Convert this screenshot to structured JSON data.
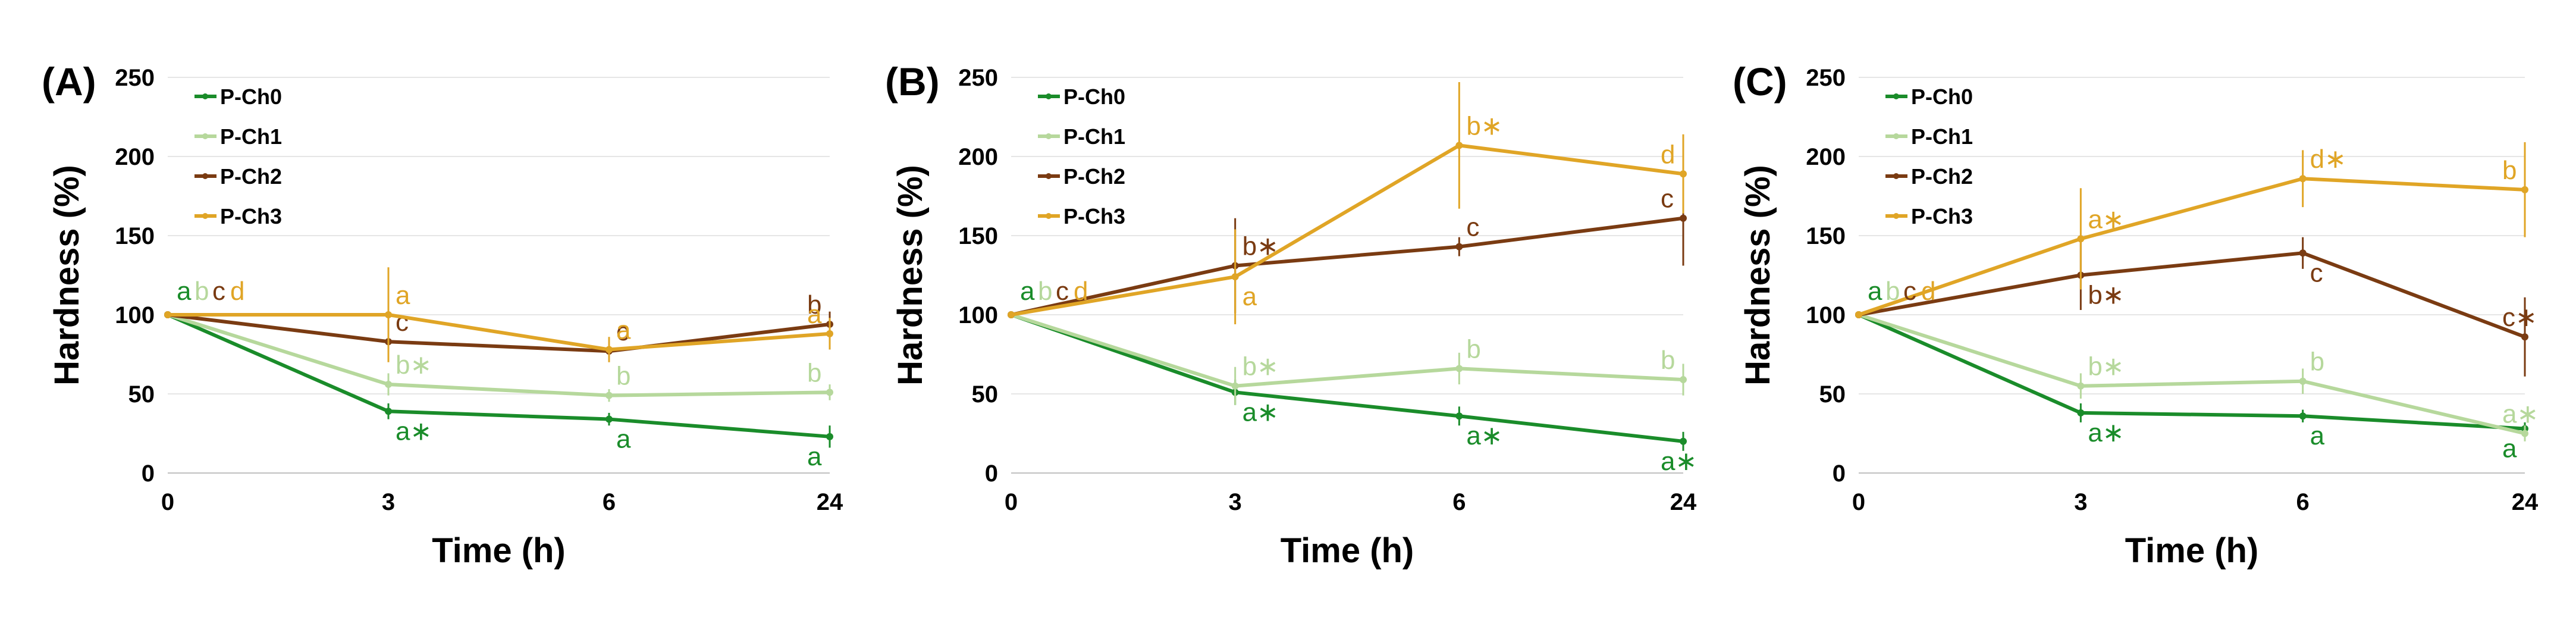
{
  "chart_data": [
    {
      "type": "line",
      "panel_label": "(A)",
      "xlabel": "Time (h)",
      "ylabel": "Hardness (%)",
      "categories": [
        "0",
        "3",
        "6",
        "24"
      ],
      "yticks": [
        "0",
        "50",
        "100",
        "150",
        "200",
        "250"
      ],
      "ylim": [
        0,
        250
      ],
      "legend_position": "top-left",
      "series": [
        {
          "name": "P-Ch0",
          "color": "#1a8c2a",
          "values": [
            100,
            39,
            34,
            23
          ],
          "errors": [
            0,
            5,
            4,
            7
          ],
          "labels": [
            "a",
            "a∗",
            "a",
            "a"
          ],
          "label_side": [
            "above",
            "below",
            "below",
            "below"
          ]
        },
        {
          "name": "P-Ch1",
          "color": "#b6d89c",
          "values": [
            100,
            56,
            49,
            51
          ],
          "errors": [
            0,
            7,
            4,
            5
          ],
          "labels": [
            "b",
            "b∗",
            "b",
            "b"
          ],
          "label_side": [
            "above",
            "above",
            "above",
            "above"
          ]
        },
        {
          "name": "P-Ch2",
          "color": "#7a3b12",
          "values": [
            100,
            83,
            77,
            94
          ],
          "errors": [
            0,
            10,
            5,
            8
          ],
          "labels": [
            "c",
            "c",
            "c",
            "b"
          ],
          "label_side": [
            "above",
            "above",
            "above",
            "above"
          ]
        },
        {
          "name": "P-Ch3",
          "color": "#e0a526",
          "values": [
            100,
            100,
            78,
            88
          ],
          "errors": [
            0,
            30,
            8,
            10
          ],
          "labels": [
            "d",
            "a",
            "a",
            "a"
          ],
          "label_side": [
            "above",
            "above",
            "above",
            "above"
          ]
        }
      ]
    },
    {
      "type": "line",
      "panel_label": "(B)",
      "xlabel": "Time (h)",
      "ylabel": "Hardness (%)",
      "categories": [
        "0",
        "3",
        "6",
        "24"
      ],
      "yticks": [
        "0",
        "50",
        "100",
        "150",
        "200",
        "250"
      ],
      "ylim": [
        0,
        250
      ],
      "legend_position": "top-left",
      "series": [
        {
          "name": "P-Ch0",
          "color": "#1a8c2a",
          "values": [
            100,
            51,
            36,
            20
          ],
          "errors": [
            0,
            8,
            6,
            6
          ],
          "labels": [
            "a",
            "a∗",
            "a∗",
            "a∗"
          ],
          "label_side": [
            "above",
            "below",
            "below",
            "below"
          ]
        },
        {
          "name": "P-Ch1",
          "color": "#b6d89c",
          "values": [
            100,
            55,
            66,
            59
          ],
          "errors": [
            0,
            12,
            10,
            10
          ],
          "labels": [
            "b",
            "b∗",
            "b",
            "b"
          ],
          "label_side": [
            "above",
            "above",
            "above",
            "above"
          ]
        },
        {
          "name": "P-Ch2",
          "color": "#7a3b12",
          "values": [
            100,
            131,
            143,
            161
          ],
          "errors": [
            0,
            30,
            6,
            30
          ],
          "labels": [
            "c",
            "b∗",
            "c",
            "c"
          ],
          "label_side": [
            "above",
            "above",
            "above",
            "above"
          ]
        },
        {
          "name": "P-Ch3",
          "color": "#e0a526",
          "values": [
            100,
            124,
            207,
            189
          ],
          "errors": [
            0,
            30,
            40,
            25
          ],
          "labels": [
            "d",
            "a",
            "b∗",
            "d"
          ],
          "label_side": [
            "above",
            "below",
            "above",
            "above"
          ]
        }
      ]
    },
    {
      "type": "line",
      "panel_label": "(C)",
      "xlabel": "Time (h)",
      "ylabel": "Hardness (%)",
      "categories": [
        "0",
        "3",
        "6",
        "24"
      ],
      "yticks": [
        "0",
        "50",
        "100",
        "150",
        "200",
        "250"
      ],
      "ylim": [
        0,
        250
      ],
      "legend_position": "top-left",
      "series": [
        {
          "name": "P-Ch0",
          "color": "#1a8c2a",
          "values": [
            100,
            38,
            36,
            28
          ],
          "errors": [
            0,
            6,
            4,
            4
          ],
          "labels": [
            "a",
            "a∗",
            "a",
            "a"
          ],
          "label_side": [
            "above",
            "below",
            "below",
            "below"
          ]
        },
        {
          "name": "P-Ch1",
          "color": "#b6d89c",
          "values": [
            100,
            55,
            58,
            25
          ],
          "errors": [
            0,
            8,
            8,
            5
          ],
          "labels": [
            "b",
            "b∗",
            "b",
            "a∗"
          ],
          "label_side": [
            "above",
            "above",
            "above",
            "above"
          ]
        },
        {
          "name": "P-Ch2",
          "color": "#7a3b12",
          "values": [
            100,
            125,
            139,
            86
          ],
          "errors": [
            0,
            22,
            10,
            25
          ],
          "labels": [
            "c",
            "b∗",
            "c",
            "c∗"
          ],
          "label_side": [
            "above",
            "below",
            "below",
            "above"
          ]
        },
        {
          "name": "P-Ch3",
          "color": "#e0a526",
          "values": [
            100,
            148,
            186,
            179
          ],
          "errors": [
            0,
            32,
            18,
            30
          ],
          "labels": [
            "d",
            "a∗",
            "d∗",
            "b"
          ],
          "label_side": [
            "above",
            "above",
            "above",
            "above"
          ]
        }
      ]
    }
  ]
}
